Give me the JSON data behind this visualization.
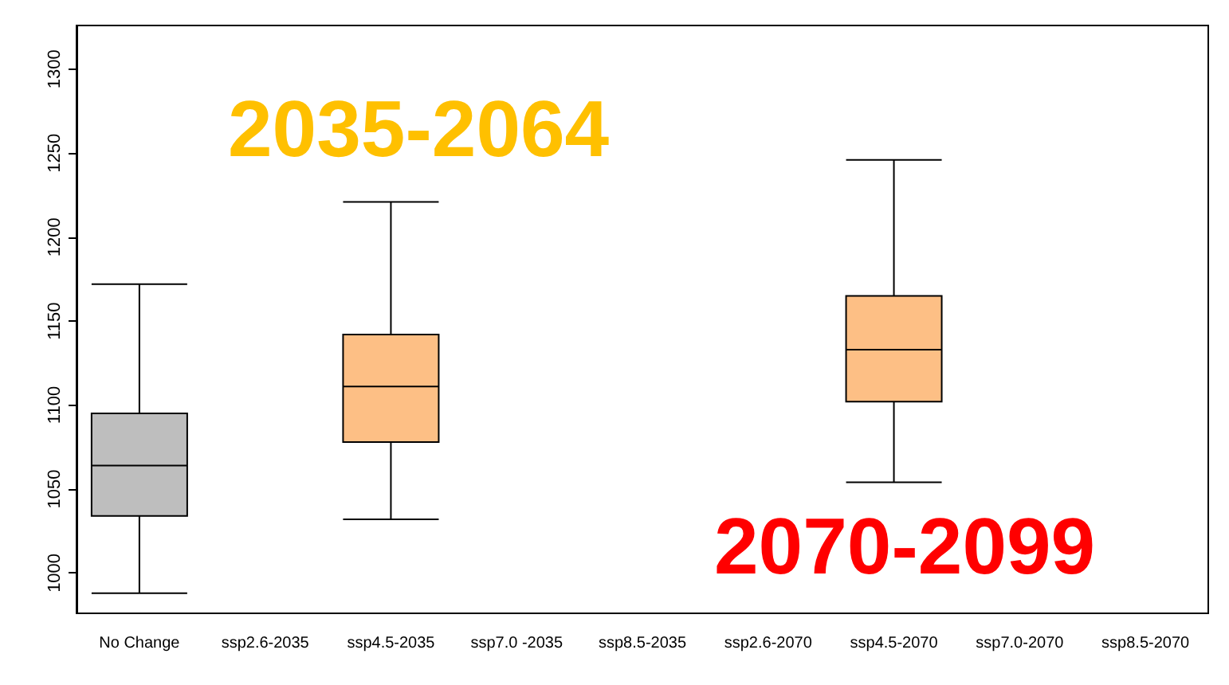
{
  "chart_data": {
    "type": "box",
    "categories": [
      "No Change",
      "ssp2.6-2035",
      "ssp4.5-2035",
      "ssp7.0 -2035",
      "ssp8.5-2035",
      "ssp2.6-2070",
      "ssp4.5-2070",
      "ssp7.0-2070",
      "ssp8.5-2070"
    ],
    "boxes": [
      {
        "low": 988,
        "q1": 1034,
        "median": 1064,
        "q3": 1095,
        "high": 1172
      },
      null,
      {
        "low": 1032,
        "q1": 1078,
        "median": 1111,
        "q3": 1142,
        "high": 1221
      },
      null,
      null,
      null,
      {
        "low": 1054,
        "q1": 1102,
        "median": 1133,
        "q3": 1165,
        "high": 1246
      },
      null,
      null
    ],
    "colors": [
      "#bebebe",
      null,
      "#fdbf85",
      null,
      null,
      null,
      "#fdbf85",
      null,
      null
    ],
    "ylim": [
      976,
      1326
    ],
    "yticks": [
      1000,
      1050,
      1100,
      1150,
      1200,
      1250,
      1300
    ],
    "annotations": [
      "2035-2064",
      "2070-2099"
    ],
    "grid": false
  }
}
